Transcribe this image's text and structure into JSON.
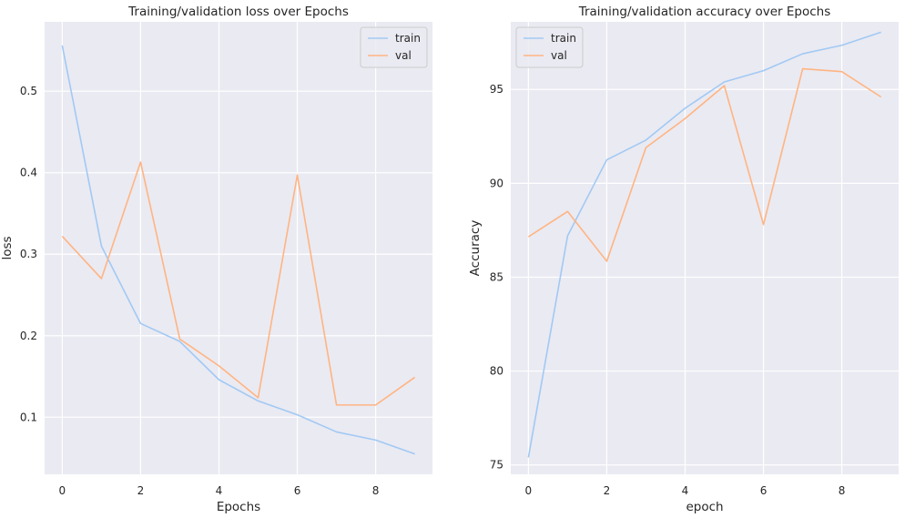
{
  "chart_data": [
    {
      "type": "line",
      "title": "Training/validation loss over Epochs",
      "xlabel": "Epochs",
      "ylabel": "loss",
      "x": [
        0,
        1,
        2,
        3,
        4,
        5,
        6,
        7,
        8,
        9
      ],
      "xlim": [
        -0.45,
        9.45
      ],
      "ylim": [
        0.03,
        0.585
      ],
      "xticks": [
        0,
        2,
        4,
        6,
        8
      ],
      "xtick_labels": [
        "0",
        "2",
        "4",
        "6",
        "8"
      ],
      "yticks": [
        0.1,
        0.2,
        0.3,
        0.4,
        0.5
      ],
      "ytick_labels": [
        "0.1",
        "0.2",
        "0.3",
        "0.4",
        "0.5"
      ],
      "grid": true,
      "legend_position": "top-right",
      "series": [
        {
          "name": "train",
          "color": "#a1c9f4",
          "values": [
            0.556,
            0.31,
            0.215,
            0.193,
            0.146,
            0.12,
            0.103,
            0.082,
            0.072,
            0.055
          ]
        },
        {
          "name": "val",
          "color": "#ffb482",
          "values": [
            0.322,
            0.27,
            0.413,
            0.196,
            0.163,
            0.124,
            0.397,
            0.115,
            0.115,
            0.149
          ]
        }
      ]
    },
    {
      "type": "line",
      "title": "Training/validation accuracy over Epochs",
      "xlabel": "epoch",
      "ylabel": "Accuracy",
      "x": [
        0,
        1,
        2,
        3,
        4,
        5,
        6,
        7,
        8,
        9
      ],
      "xlim": [
        -0.45,
        9.45
      ],
      "ylim": [
        74.5,
        98.6
      ],
      "xticks": [
        0,
        2,
        4,
        6,
        8
      ],
      "xtick_labels": [
        "0",
        "2",
        "4",
        "6",
        "8"
      ],
      "yticks": [
        75,
        80,
        85,
        90,
        95
      ],
      "ytick_labels": [
        "75",
        "80",
        "85",
        "90",
        "95"
      ],
      "grid": true,
      "legend_position": "top-left",
      "series": [
        {
          "name": "train",
          "color": "#a1c9f4",
          "values": [
            75.4,
            87.2,
            91.25,
            92.3,
            94.0,
            95.4,
            96.0,
            96.9,
            97.35,
            98.05
          ]
        },
        {
          "name": "val",
          "color": "#ffb482",
          "values": [
            87.15,
            88.5,
            85.85,
            91.9,
            93.45,
            95.2,
            87.8,
            96.1,
            95.95,
            94.6
          ]
        }
      ]
    }
  ],
  "colors": {
    "axes_background": "#eaeaf2",
    "grid": "#ffffff",
    "text": "#262626",
    "figure_background": "#ffffff"
  }
}
